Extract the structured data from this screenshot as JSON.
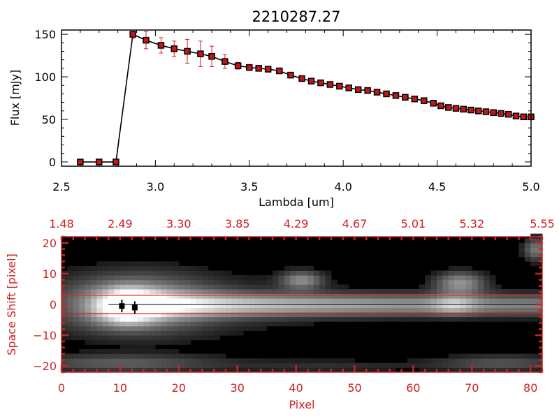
{
  "colors": {
    "spectrum_axis": "#000000",
    "spectrum_marker": "#c01818",
    "error_bar": "#cc2222",
    "image_axis": "#cc2222",
    "extraction_lines": "#dd2020",
    "background": "#ffffff"
  },
  "chart_data": [
    {
      "type": "line",
      "title": "2210287.27",
      "xlabel": "Lambda [um]",
      "ylabel": "Flux [mJy]",
      "xlim": [
        2.5,
        5.0
      ],
      "ylim": [
        -5,
        155
      ],
      "x_ticks": [
        2.5,
        3.0,
        3.5,
        4.0,
        4.5,
        5.0
      ],
      "x_tick_labels": [
        "2.5",
        "3.0",
        "3.5",
        "4.0",
        "4.5",
        "5.0"
      ],
      "y_ticks": [
        0,
        50,
        100,
        150
      ],
      "y_tick_labels": [
        "0",
        "50",
        "100",
        "150"
      ],
      "series": [
        {
          "name": "flux",
          "x": [
            2.6,
            2.7,
            2.79,
            2.88,
            2.95,
            3.03,
            3.1,
            3.17,
            3.24,
            3.3,
            3.37,
            3.44,
            3.5,
            3.55,
            3.6,
            3.66,
            3.72,
            3.78,
            3.83,
            3.88,
            3.93,
            3.98,
            4.03,
            4.08,
            4.13,
            4.18,
            4.23,
            4.28,
            4.33,
            4.38,
            4.43,
            4.48,
            4.52,
            4.56,
            4.6,
            4.64,
            4.68,
            4.72,
            4.76,
            4.8,
            4.84,
            4.88,
            4.92,
            4.96,
            5.0
          ],
          "y": [
            0,
            0,
            0,
            150,
            143,
            137,
            133,
            130,
            127,
            124,
            118,
            113,
            111,
            110,
            109,
            107,
            102,
            98,
            95,
            93,
            91,
            89,
            87,
            85,
            84,
            82,
            80,
            78,
            76,
            74,
            72,
            69,
            66,
            64,
            63,
            62,
            61,
            60,
            59,
            58,
            57,
            56,
            54,
            53,
            53
          ],
          "yerr": [
            0,
            0,
            0,
            5,
            10,
            9,
            9,
            14,
            15,
            12,
            8,
            4,
            3,
            3,
            3,
            2,
            3,
            2,
            2,
            2,
            2,
            2,
            2,
            2,
            2,
            2,
            2,
            2,
            2,
            2,
            2,
            2,
            2,
            2,
            2,
            2,
            2,
            2,
            2,
            2,
            2,
            2,
            3,
            3,
            3
          ]
        }
      ]
    },
    {
      "type": "heatmap",
      "xlabel": "Pixel",
      "ylabel": "Space Shift [pixel]",
      "xlim": [
        0,
        82
      ],
      "ylim": [
        -22,
        22
      ],
      "x_ticks": [
        0,
        10,
        20,
        30,
        40,
        50,
        60,
        70,
        80
      ],
      "x_tick_labels": [
        "0",
        "10",
        "20",
        "30",
        "40",
        "50",
        "60",
        "70",
        "80"
      ],
      "y_ticks": [
        -20,
        -10,
        0,
        10,
        20
      ],
      "y_tick_labels": [
        "−20",
        "−10",
        "0",
        "10",
        "20"
      ],
      "top_axis_ticks": [
        0,
        10,
        20,
        30,
        40,
        50,
        60,
        70,
        82
      ],
      "top_axis_labels": [
        "1.48",
        "2.49",
        "3.30",
        "3.85",
        "4.29",
        "4.67",
        "5.01",
        "5.32",
        "5.55"
      ],
      "extraction_bounds": [
        3,
        -3
      ],
      "blobs": [
        {
          "x": 11,
          "y": -0.5,
          "sx": 3.5,
          "sy": 3.5,
          "amp": 0.95
        },
        {
          "x": 13,
          "y": 0.5,
          "sx": 8,
          "sy": 6,
          "amp": 0.45
        },
        {
          "x": 41,
          "y": 8,
          "sx": 2.5,
          "sy": 2,
          "amp": 0.45
        },
        {
          "x": 68,
          "y": 7,
          "sx": 3,
          "sy": 2.5,
          "amp": 0.5
        },
        {
          "x": 67,
          "y": 0,
          "sx": 2.5,
          "sy": 2,
          "amp": 0.35
        },
        {
          "x": 81,
          "y": 18,
          "sx": 1.5,
          "sy": 2.5,
          "amp": 0.4
        },
        {
          "x": 75,
          "y": -19,
          "sx": 8,
          "sy": 1.8,
          "amp": 0.25
        },
        {
          "x": 10,
          "y": -19,
          "sx": 12,
          "sy": 2,
          "amp": 0.28
        },
        {
          "x": 45,
          "y": -20,
          "sx": 12,
          "sy": 1.5,
          "amp": 0.12
        }
      ],
      "trace": {
        "start": 8,
        "end": 82,
        "width": 2.5,
        "amp_start": 0.7,
        "amp_end": 0.42
      },
      "markers": [
        {
          "x": 10.3,
          "y": -0.5
        },
        {
          "x": 12.5,
          "y": -1
        }
      ]
    }
  ]
}
